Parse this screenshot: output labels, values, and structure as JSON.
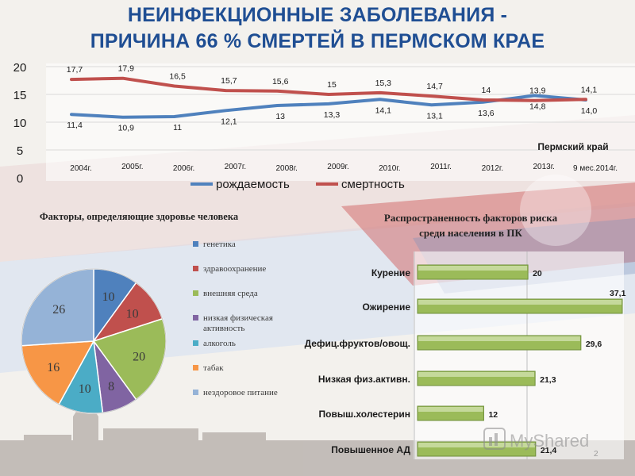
{
  "slide": {
    "title_line_1": "НЕИНФЕКЦИОННЫЕ ЗАБОЛЕВАНИЯ -",
    "title_line_2": "ПРИЧИНА 66 % СМЕРТЕЙ В ПЕРМСКОМ КРАЕ",
    "slide_number": "2",
    "watermark_text": "MyShared",
    "colors": {
      "title": "#1f4e93",
      "band_blue": "#5c7fae",
      "flag_red": "#c0504d"
    }
  },
  "chart_data": [
    {
      "type": "line",
      "region_label": "Пермский край",
      "categories": [
        "2004г.",
        "2005г.",
        "2006г.",
        "2007г.",
        "2008г.",
        "2009г.",
        "2010г.",
        "2011г.",
        "2012г.",
        "2013г.",
        "9 мес.2014г."
      ],
      "ylim": [
        0,
        20
      ],
      "y_ticks": [
        "0",
        "5",
        "10",
        "15",
        "20"
      ],
      "legend_position": "bottom",
      "series": [
        {
          "name": "рождаемость",
          "color": "#4f81bd",
          "values": [
            11.4,
            10.9,
            11,
            12.1,
            13,
            13.3,
            14.1,
            13.1,
            13.6,
            14.8,
            14.0
          ],
          "labels": [
            "11,4",
            "10,9",
            "11",
            "12,1",
            "13",
            "13,3",
            "14,1",
            "13,1",
            "13,6",
            "14,8",
            "14,0"
          ]
        },
        {
          "name": "смертность",
          "color": "#c0504d",
          "values": [
            17.7,
            17.9,
            16.5,
            15.7,
            15.6,
            15,
            15.3,
            14.7,
            14,
            13.9,
            14.1
          ],
          "labels": [
            "17,7",
            "17,9",
            "16,5",
            "15,7",
            "15,6",
            "15",
            "15,3",
            "14,7",
            "14",
            "13,9",
            "14,1"
          ]
        }
      ]
    },
    {
      "type": "pie",
      "title": "Факторы, определяющие здоровье человека",
      "slices": [
        {
          "name": "генетика",
          "value": 10,
          "label": "10",
          "color": "#4f81bd"
        },
        {
          "name": "здравоохранение",
          "value": 10,
          "label": "10",
          "color": "#c0504d"
        },
        {
          "name": "внешняя среда",
          "value": 20,
          "label": "20",
          "color": "#9bbb59"
        },
        {
          "name": "низкая физическая активность",
          "value": 8,
          "label": "8",
          "color": "#8064a2"
        },
        {
          "name": "алкоголь",
          "value": 10,
          "label": "10",
          "color": "#4bacc6"
        },
        {
          "name": "табак",
          "value": 16,
          "label": "16",
          "color": "#f79646"
        },
        {
          "name": "нездоровое питание",
          "value": 26,
          "label": "26",
          "color": "#95b3d7"
        }
      ]
    },
    {
      "type": "bar",
      "orientation": "horizontal",
      "title_line_1": "Распространенность факторов риска",
      "title_line_2": "среди населения в ПК",
      "color": "#9bbb59",
      "xlim": [
        0,
        40
      ],
      "categories": [
        "Курение",
        "Ожирение",
        "Дефиц.фруктов/овощ.",
        "Низкая физ.активн.",
        "Повыш.холестерин",
        "Повышенное АД"
      ],
      "values": [
        20,
        37.1,
        29.6,
        21.3,
        12,
        21.4
      ],
      "labels": [
        "20",
        "37,1",
        "29,6",
        "21,3",
        "12",
        "21,4"
      ]
    }
  ]
}
